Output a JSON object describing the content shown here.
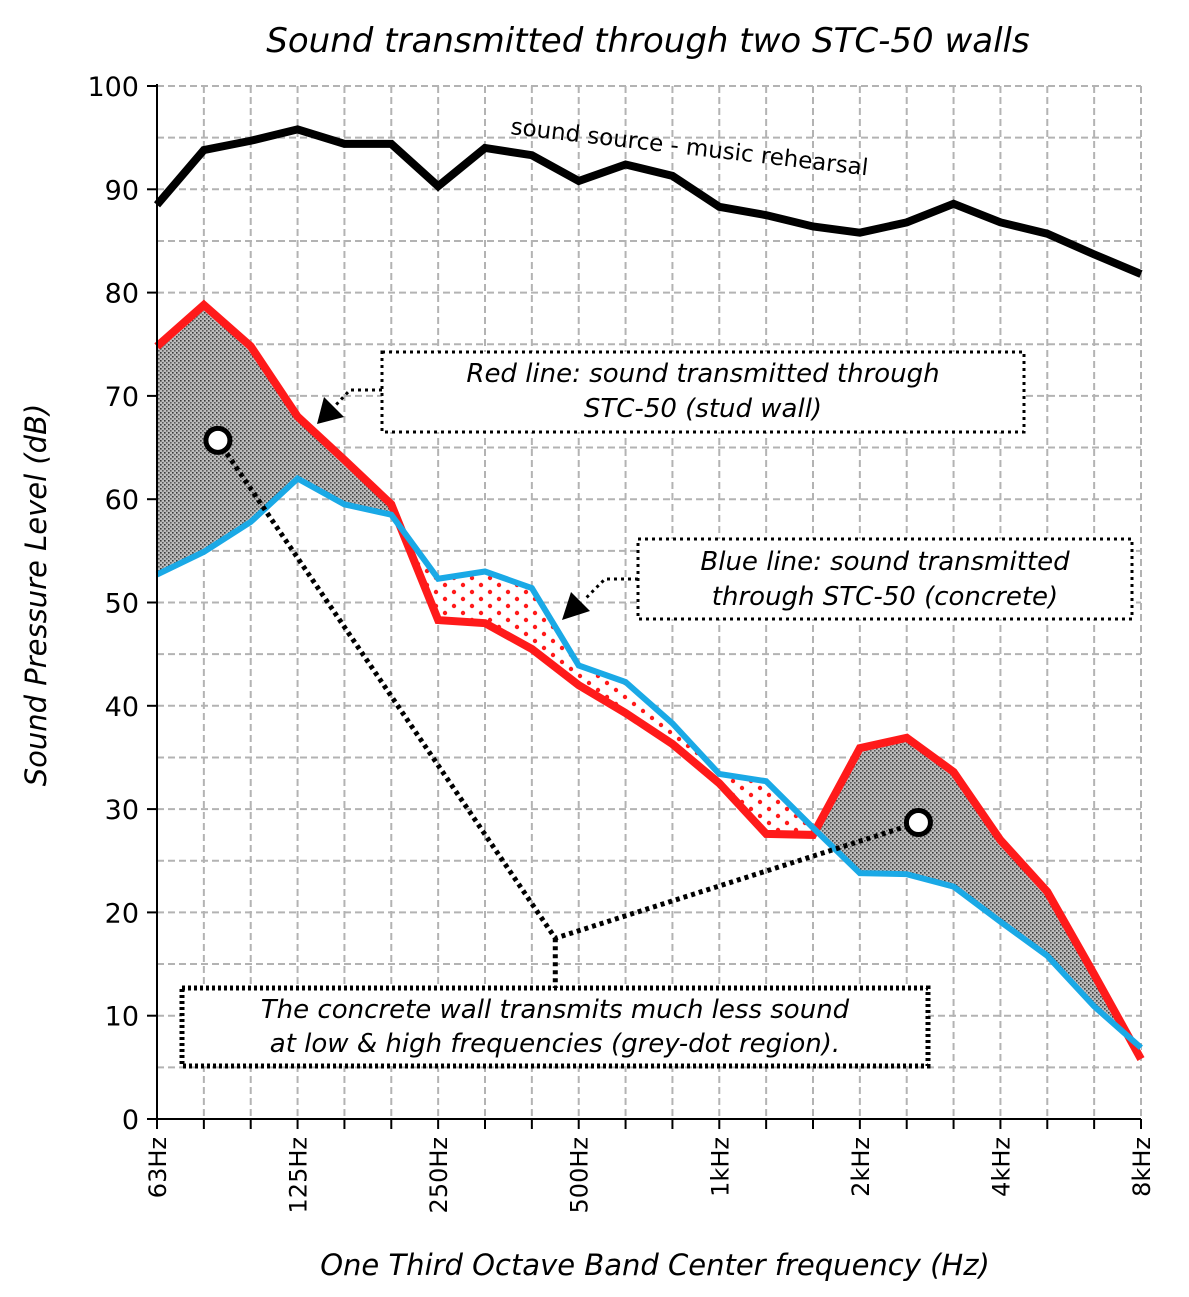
{
  "chart_data": {
    "type": "line",
    "title": "Sound transmitted through two STC-50 walls",
    "xlabel": "One Third Octave Band Center frequency (Hz)",
    "ylabel": "Sound Pressure Level (dB)",
    "ylim": [
      0,
      100
    ],
    "yticks": [
      0,
      10,
      20,
      30,
      40,
      50,
      60,
      70,
      80,
      90,
      100
    ],
    "grid": true,
    "x_bands": [
      "63Hz",
      "80Hz",
      "100Hz",
      "125Hz",
      "160Hz",
      "200Hz",
      "250Hz",
      "315Hz",
      "400Hz",
      "500Hz",
      "630Hz",
      "800Hz",
      "1kHz",
      "1.25kHz",
      "1.6kHz",
      "2kHz",
      "2.5kHz",
      "3.15kHz",
      "4kHz",
      "5kHz",
      "6.3kHz",
      "8kHz"
    ],
    "x_tick_labels": [
      {
        "band": 0,
        "label": "63Hz"
      },
      {
        "band": 3,
        "label": "125Hz"
      },
      {
        "band": 6,
        "label": "250Hz"
      },
      {
        "band": 9,
        "label": "500Hz"
      },
      {
        "band": 12,
        "label": "1kHz"
      },
      {
        "band": 15,
        "label": "2kHz"
      },
      {
        "band": 18,
        "label": "4kHz"
      },
      {
        "band": 21,
        "label": "8kHz"
      }
    ],
    "series": [
      {
        "key": "source",
        "color": "#000000",
        "values": [
          88.5,
          93.8,
          94.7,
          95.8,
          94.4,
          94.4,
          90.3,
          94.0,
          93.3,
          90.8,
          92.4,
          91.3,
          88.3,
          87.5,
          86.4,
          85.8,
          86.8,
          88.6,
          86.8,
          85.7,
          83.7,
          81.8
        ]
      },
      {
        "key": "stud_wall",
        "color": "#ff1a1a",
        "values": [
          74.8,
          78.8,
          74.8,
          68.0,
          63.8,
          59.5,
          48.3,
          48.0,
          45.5,
          42.0,
          39.3,
          36.3,
          32.5,
          27.6,
          27.5,
          35.9,
          36.9,
          33.6,
          27.0,
          22.0,
          14.0,
          5.8
        ]
      },
      {
        "key": "concrete",
        "color": "#1aa9e6",
        "values": [
          52.7,
          54.9,
          57.8,
          62.0,
          59.5,
          58.5,
          52.3,
          53.0,
          51.4,
          43.9,
          42.3,
          38.3,
          33.4,
          32.7,
          28.2,
          23.8,
          23.7,
          22.5,
          19.1,
          15.8,
          10.9,
          6.9
        ]
      }
    ],
    "annotations": {
      "source_label": "sound source - music rehearsal",
      "red_note": [
        "Red line: sound transmitted through",
        "STC-50 (stud wall)"
      ],
      "blue_note": [
        "Blue line: sound transmitted",
        "through STC-50 (concrete)"
      ],
      "bottom_note": [
        "The concrete wall transmits much less sound",
        "at low & high frequencies (grey-dot region)."
      ]
    },
    "marker_points": [
      {
        "band": 1.3,
        "y": 65.7
      },
      {
        "band": 16.25,
        "y": 28.7
      }
    ],
    "leader_elbow": {
      "band": 8.5,
      "y": 17.5
    }
  }
}
